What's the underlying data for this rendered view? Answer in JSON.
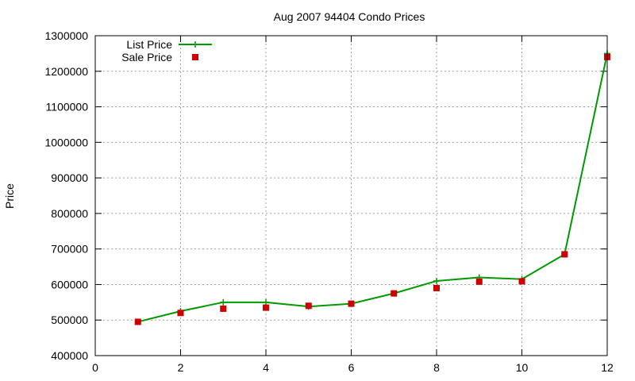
{
  "chart_data": {
    "type": "line",
    "title": "Aug 2007 94404 Condo Prices",
    "xlabel": "",
    "ylabel": "Price",
    "xlim": [
      0,
      12
    ],
    "ylim": [
      400000,
      1300000
    ],
    "x_ticks": [
      "0",
      "2",
      "4",
      "6",
      "8",
      "10",
      "12"
    ],
    "y_ticks": [
      "400000",
      "500000",
      "600000",
      "700000",
      "800000",
      "900000",
      "1000000",
      "1100000",
      "1200000",
      "1300000"
    ],
    "grid": true,
    "legend_position": "top-left",
    "series": [
      {
        "name": "List Price",
        "style": "line-with-plus-markers",
        "color": "#009900",
        "x": [
          1,
          2,
          3,
          4,
          5,
          6,
          7,
          8,
          9,
          10,
          11,
          12
        ],
        "values": [
          495000,
          525000,
          550000,
          550000,
          538000,
          546000,
          575000,
          610000,
          620000,
          615000,
          685000,
          1250000
        ]
      },
      {
        "name": "Sale Price",
        "style": "square-markers",
        "color": "#cc0000",
        "x": [
          1,
          2,
          3,
          4,
          5,
          6,
          7,
          8,
          9,
          10,
          11,
          12
        ],
        "values": [
          495000,
          520000,
          532000,
          535000,
          540000,
          546000,
          575000,
          590000,
          608000,
          609000,
          685000,
          1240000
        ]
      }
    ]
  }
}
